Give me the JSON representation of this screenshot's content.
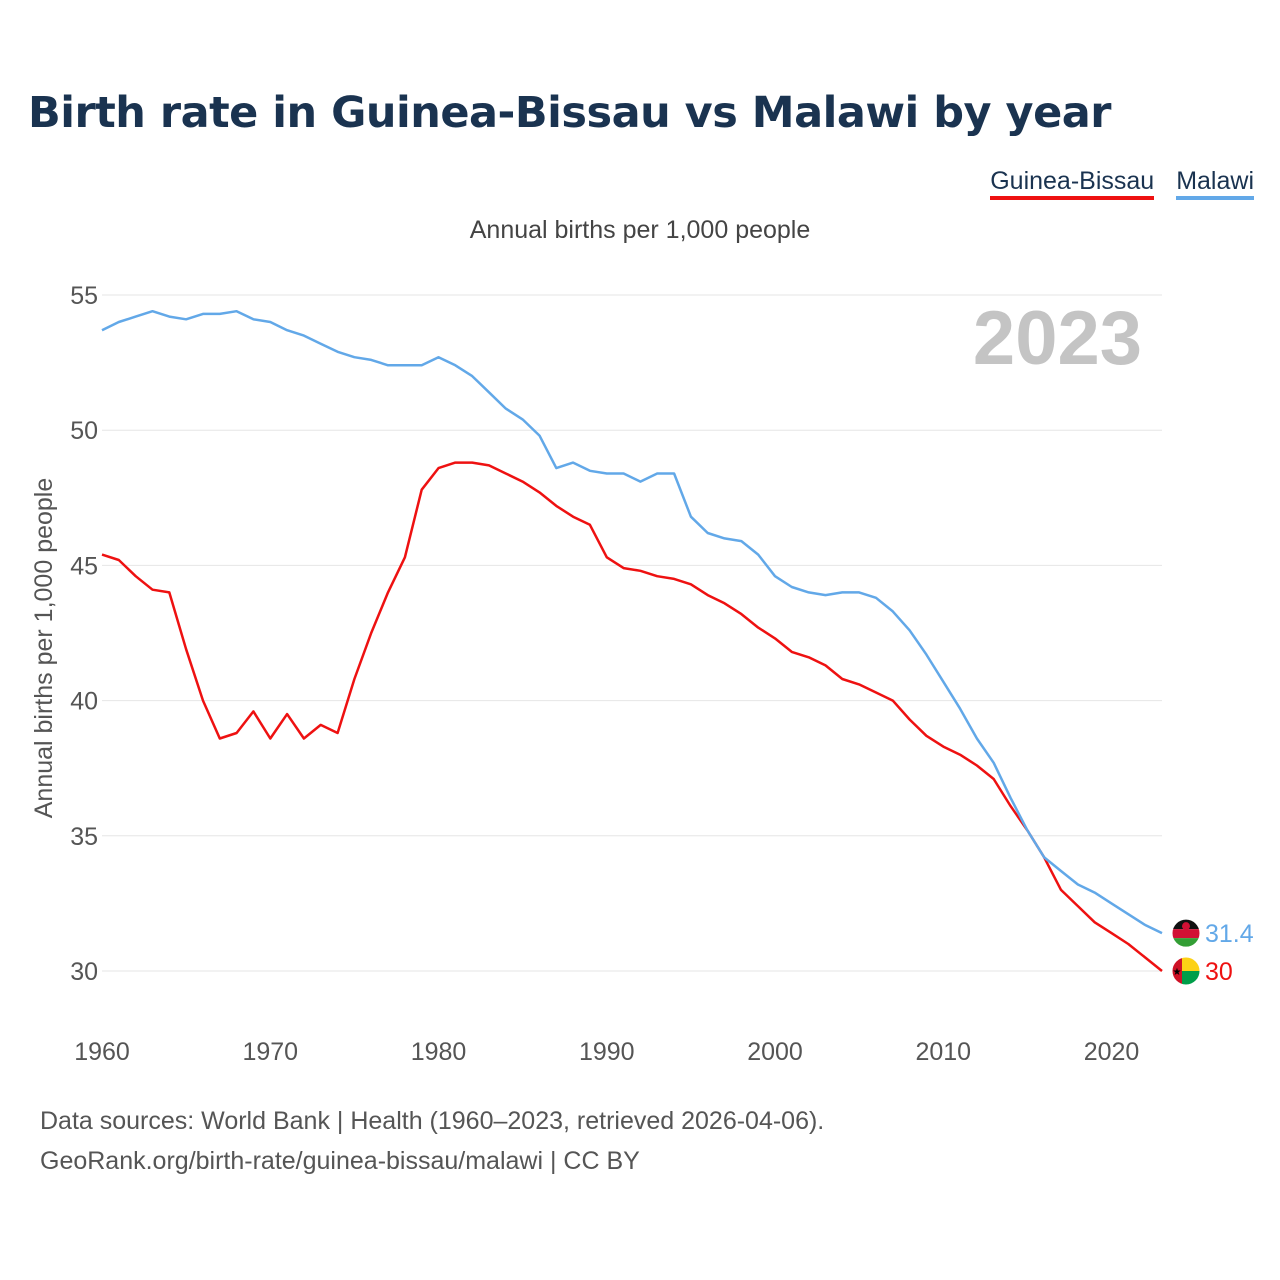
{
  "title": "Birth rate in Guinea-Bissau vs Malawi by year",
  "legend": [
    {
      "name": "Guinea-Bissau",
      "color": "#ee1111"
    },
    {
      "name": "Malawi",
      "color": "#62a8e8"
    }
  ],
  "subtitle": "Annual births per 1,000 people",
  "year_display": "2023",
  "footer": {
    "sources": "Data sources: World Bank | Health (1960–2023, retrieved 2026-04-06).",
    "credit": "GeoRank.org/birth-rate/guinea-bissau/malawi | CC BY"
  },
  "chart_data": {
    "type": "line",
    "ylabel": "Annual births per 1,000 people",
    "xlabel": "",
    "ylim": [
      28.5,
      56
    ],
    "xlim": [
      1960,
      2023
    ],
    "yticks": [
      30,
      35,
      40,
      45,
      50,
      55
    ],
    "xticks": [
      1960,
      1970,
      1980,
      1990,
      2000,
      2010,
      2020
    ],
    "grid": true,
    "x": [
      1960,
      1961,
      1962,
      1963,
      1964,
      1965,
      1966,
      1967,
      1968,
      1969,
      1970,
      1971,
      1972,
      1973,
      1974,
      1975,
      1976,
      1977,
      1978,
      1979,
      1980,
      1981,
      1982,
      1983,
      1984,
      1985,
      1986,
      1987,
      1988,
      1989,
      1990,
      1991,
      1992,
      1993,
      1994,
      1995,
      1996,
      1997,
      1998,
      1999,
      2000,
      2001,
      2002,
      2003,
      2004,
      2005,
      2006,
      2007,
      2008,
      2009,
      2010,
      2011,
      2012,
      2013,
      2014,
      2015,
      2016,
      2017,
      2018,
      2019,
      2020,
      2021,
      2022,
      2023
    ],
    "series": [
      {
        "name": "Guinea-Bissau",
        "color": "#ee1111",
        "end_label": "30",
        "values": [
          45.4,
          45.2,
          44.6,
          44.1,
          44.0,
          41.9,
          40.0,
          38.6,
          38.8,
          39.6,
          38.6,
          39.5,
          38.6,
          39.1,
          38.8,
          40.8,
          42.5,
          44.0,
          45.3,
          47.8,
          48.6,
          48.8,
          48.8,
          48.7,
          48.4,
          48.1,
          47.7,
          47.2,
          46.8,
          46.5,
          45.3,
          44.9,
          44.8,
          44.6,
          44.5,
          44.3,
          43.9,
          43.6,
          43.2,
          42.7,
          42.3,
          41.8,
          41.6,
          41.3,
          40.8,
          40.6,
          40.3,
          40.0,
          39.3,
          38.7,
          38.3,
          38.0,
          37.6,
          37.1,
          36.1,
          35.2,
          34.2,
          33.0,
          32.4,
          31.8,
          31.4,
          31.0,
          30.5,
          30.0
        ]
      },
      {
        "name": "Malawi",
        "color": "#62a8e8",
        "end_label": "31.4",
        "values": [
          53.7,
          54.0,
          54.2,
          54.4,
          54.2,
          54.1,
          54.3,
          54.3,
          54.4,
          54.1,
          54.0,
          53.7,
          53.5,
          53.2,
          52.9,
          52.7,
          52.6,
          52.4,
          52.4,
          52.4,
          52.7,
          52.4,
          52.0,
          51.4,
          50.8,
          50.4,
          49.8,
          48.6,
          48.8,
          48.5,
          48.4,
          48.4,
          48.1,
          48.4,
          48.4,
          46.8,
          46.2,
          46.0,
          45.9,
          45.4,
          44.6,
          44.2,
          44.0,
          43.9,
          44.0,
          44.0,
          43.8,
          43.3,
          42.6,
          41.7,
          40.7,
          39.7,
          38.6,
          37.7,
          36.4,
          35.2,
          34.2,
          33.7,
          33.2,
          32.9,
          32.5,
          32.1,
          31.7,
          31.4
        ]
      }
    ]
  }
}
